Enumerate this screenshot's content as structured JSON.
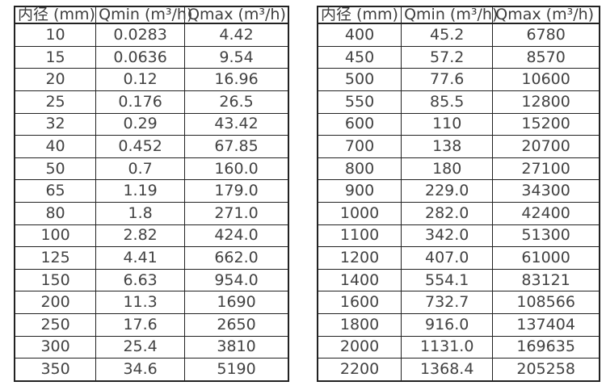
{
  "colors": {
    "border": "#222222",
    "text": "#404040",
    "background": "#ffffff"
  },
  "tables": [
    {
      "name": "flow-spec-small-diameters",
      "headers": [
        "内径 (mm)",
        "Qmin (m³/h)",
        "Qmax (m³/h)"
      ],
      "rows": [
        [
          "10",
          "0.0283",
          "4.42"
        ],
        [
          "15",
          "0.0636",
          "9.54"
        ],
        [
          "20",
          "0.12",
          "16.96"
        ],
        [
          "25",
          "0.176",
          "26.5"
        ],
        [
          "32",
          "0.29",
          "43.42"
        ],
        [
          "40",
          "0.452",
          "67.85"
        ],
        [
          "50",
          "0.7",
          "160.0"
        ],
        [
          "65",
          "1.19",
          "179.0"
        ],
        [
          "80",
          "1.8",
          "271.0"
        ],
        [
          "100",
          "2.82",
          "424.0"
        ],
        [
          "125",
          "4.41",
          "662.0"
        ],
        [
          "150",
          "6.63",
          "954.0"
        ],
        [
          "200",
          "11.3",
          "1690"
        ],
        [
          "250",
          "17.6",
          "2650"
        ],
        [
          "300",
          "25.4",
          "3810"
        ],
        [
          "350",
          "34.6",
          "5190"
        ]
      ]
    },
    {
      "name": "flow-spec-large-diameters",
      "headers": [
        "内径 (mm)",
        "Qmin (m³/h)",
        "Qmax (m³/h)"
      ],
      "rows": [
        [
          "400",
          "45.2",
          "6780"
        ],
        [
          "450",
          "57.2",
          "8570"
        ],
        [
          "500",
          "77.6",
          "10600"
        ],
        [
          "550",
          "85.5",
          "12800"
        ],
        [
          "600",
          "110",
          "15200"
        ],
        [
          "700",
          "138",
          "20700"
        ],
        [
          "800",
          "180",
          "27100"
        ],
        [
          "900",
          "229.0",
          "34300"
        ],
        [
          "1000",
          "282.0",
          "42400"
        ],
        [
          "1100",
          "342.0",
          "51300"
        ],
        [
          "1200",
          "407.0",
          "61000"
        ],
        [
          "1400",
          "554.1",
          "83121"
        ],
        [
          "1600",
          "732.7",
          "108566"
        ],
        [
          "1800",
          "916.0",
          "137404"
        ],
        [
          "2000",
          "1131.0",
          "169635"
        ],
        [
          "2200",
          "1368.4",
          "205258"
        ]
      ]
    }
  ]
}
